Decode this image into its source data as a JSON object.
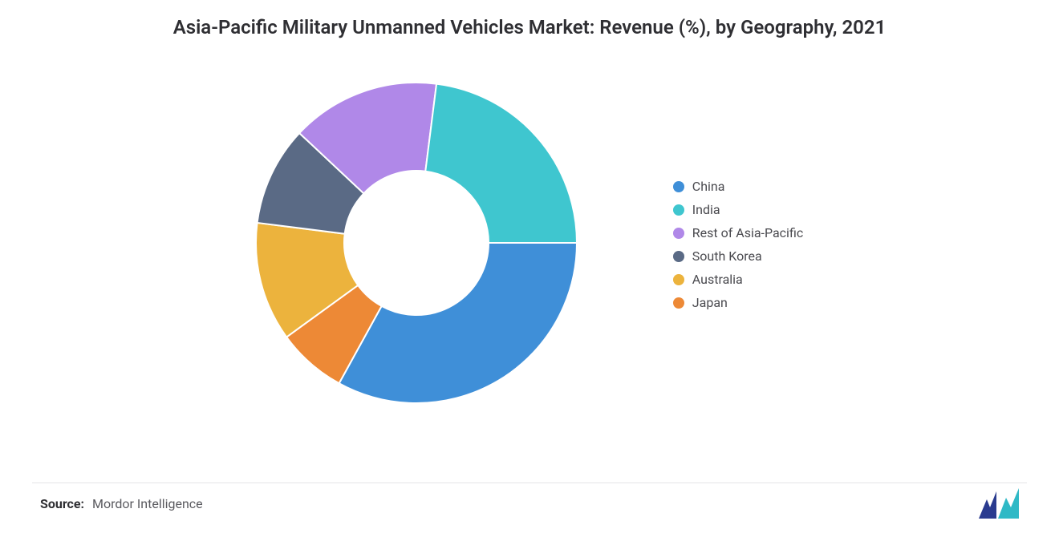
{
  "title": "Asia-Pacific Military Unmanned Vehicles Market: Revenue (%), by Geography, 2021",
  "title_fontsize": 24,
  "title_color": "#2f2f33",
  "source_label": "Source:",
  "source_value": "Mordor Intelligence",
  "background_color": "#ffffff",
  "separator_color": "#e4e4e7",
  "logo": {
    "bar1_color": "#2a3b8f",
    "bar2_color": "#2fb9c6",
    "width": 60,
    "height": 38
  },
  "chart": {
    "type": "donut",
    "outer_radius": 200,
    "inner_radius": 90,
    "start_angle_deg": 0,
    "direction": "clockwise",
    "stroke_color": "#ffffff",
    "stroke_width": 2,
    "segments": [
      {
        "label": "China",
        "value": 33,
        "color": "#3f8fd8"
      },
      {
        "label": "Japan",
        "value": 7,
        "color": "#ed8936"
      },
      {
        "label": "Australia",
        "value": 12,
        "color": "#ecb33d"
      },
      {
        "label": "South Korea",
        "value": 10,
        "color": "#5a6a85"
      },
      {
        "label": "Rest of Asia-Pacific",
        "value": 15,
        "color": "#b088e8"
      },
      {
        "label": "India",
        "value": 23,
        "color": "#3fc6cf"
      }
    ],
    "legend_order": [
      "China",
      "India",
      "Rest of Asia-Pacific",
      "South Korea",
      "Australia",
      "Japan"
    ],
    "legend_marker_shape": "circle",
    "legend_fontsize": 16,
    "legend_text_color": "#4a4a4f"
  }
}
